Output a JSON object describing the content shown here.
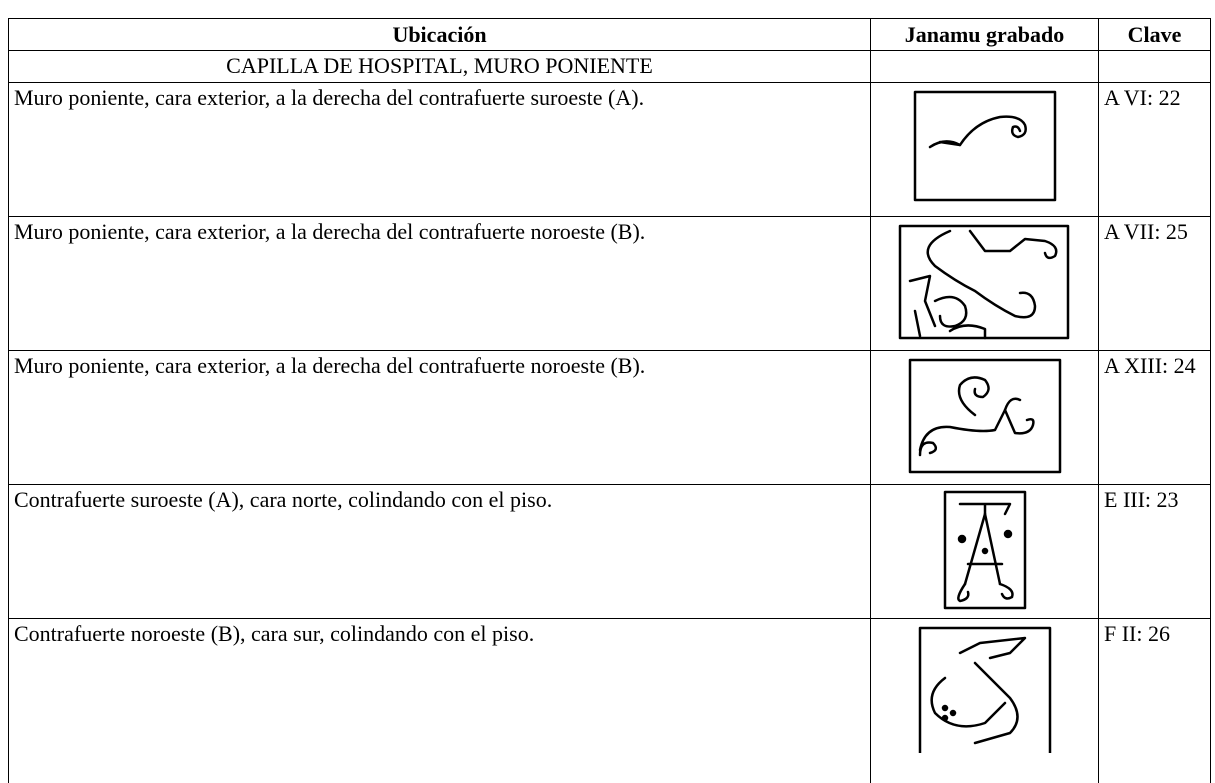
{
  "table": {
    "headers": [
      "Ubicación",
      "Janamu grabado",
      "Clave"
    ],
    "section": "CAPILLA DE HOSPITAL, MURO PONIENTE",
    "rows": [
      {
        "location": "Muro poniente, cara exterior, a la derecha del contrafuerte suroeste (A).",
        "key": "A VI: 22"
      },
      {
        "location": "Muro poniente, cara exterior, a la derecha del contrafuerte noroeste (B).",
        "key": "A VII: 25"
      },
      {
        "location": "Muro poniente, cara exterior, a la derecha del contrafuerte noroeste (B).",
        "key": "A XIII: 24"
      },
      {
        "location": "Contrafuerte suroeste (A), cara norte, colindando con el piso.",
        "key": "E III: 23"
      },
      {
        "location": "Contrafuerte noroeste (B),  cara sur, colindando con el piso.",
        "key": "F II: 26"
      }
    ]
  }
}
